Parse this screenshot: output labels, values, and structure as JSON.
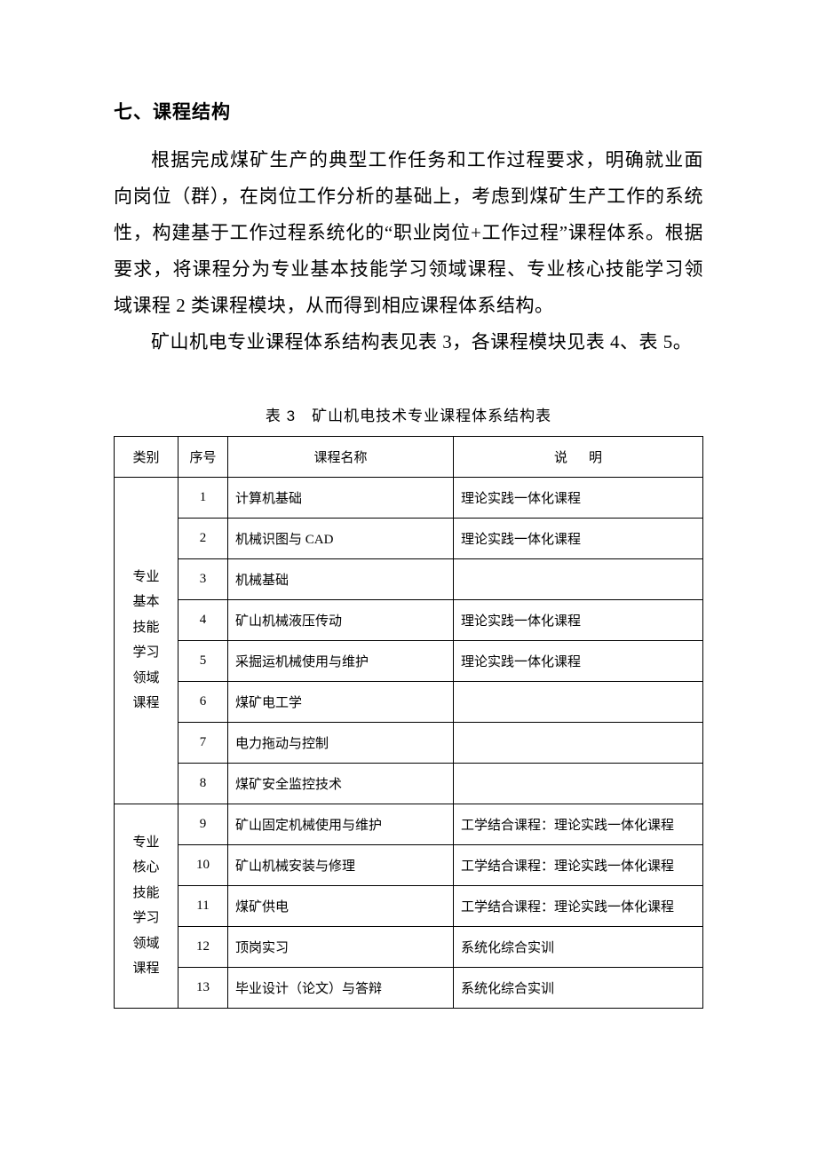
{
  "heading": "七、课程结构",
  "paragraphs": [
    "根据完成煤矿生产的典型工作任务和工作过程要求，明确就业面向岗位（群），在岗位工作分析的基础上，考虑到煤矿生产工作的系统性，构建基于工作过程系统化的“职业岗位+工作过程”课程体系。根据要求，将课程分为专业基本技能学习领域课程、专业核心技能学习领域课程 2 类课程模块，从而得到相应课程体系结构。",
    "矿山机电专业课程体系结构表见表 3，各课程模块见表 4、表 5。"
  ],
  "table": {
    "caption": "表 3　矿山机电技术专业课程体系结构表",
    "columns": {
      "category": "类别",
      "seq": "序号",
      "name": "课程名称",
      "desc_a": "说",
      "desc_b": "明"
    },
    "groups": [
      {
        "lines": [
          {
            "text": "专业",
            "bold": true
          },
          {
            "text": "基本",
            "bold": true
          },
          {
            "text": "技能",
            "bold": true
          },
          {
            "text": "学习",
            "bold": false
          },
          {
            "text": "领域",
            "bold": false
          },
          {
            "text": "课程",
            "bold": true
          }
        ],
        "rows": [
          {
            "seq": "1",
            "name": "计算机基础",
            "desc": "理论实践一体化课程"
          },
          {
            "seq": "2",
            "name": "机械识图与 CAD",
            "desc": "理论实践一体化课程"
          },
          {
            "seq": "3",
            "name": "机械基础",
            "desc": ""
          },
          {
            "seq": "4",
            "name": "矿山机械液压传动",
            "desc": "理论实践一体化课程"
          },
          {
            "seq": "5",
            "name": "采掘运机械使用与维护",
            "desc": "理论实践一体化课程"
          },
          {
            "seq": "6",
            "name": "煤矿电工学",
            "desc": ""
          },
          {
            "seq": "7",
            "name": "电力拖动与控制",
            "desc": ""
          },
          {
            "seq": "8",
            "name": "煤矿安全监控技术",
            "desc": ""
          }
        ]
      },
      {
        "lines": [
          {
            "text": "专业",
            "bold": false
          },
          {
            "text": "核心",
            "bold": false
          },
          {
            "text": "技能",
            "bold": false
          },
          {
            "text": "学习",
            "bold": false
          },
          {
            "text": "领域",
            "bold": false
          },
          {
            "text": "课程",
            "bold": false
          }
        ],
        "rows": [
          {
            "seq": "9",
            "name": "矿山固定机械使用与维护",
            "desc": "工学结合课程：理论实践一体化课程"
          },
          {
            "seq": "10",
            "name": "矿山机械安装与修理",
            "desc": "工学结合课程：理论实践一体化课程"
          },
          {
            "seq": "11",
            "name": "煤矿供电",
            "desc": "工学结合课程：理论实践一体化课程"
          },
          {
            "seq": "12",
            "name": "顶岗实习",
            "desc": "系统化综合实训"
          },
          {
            "seq": "13",
            "name": "毕业设计（论文）与答辩",
            "desc": "系统化综合实训"
          }
        ]
      }
    ]
  }
}
